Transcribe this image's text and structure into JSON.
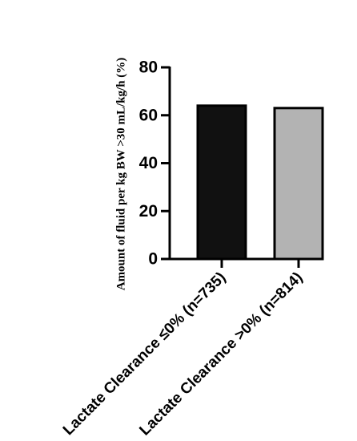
{
  "chart_data": {
    "type": "bar",
    "categories": [
      "Lactate Clearance ≤0% (n=735)",
      "Lactate Clearance >0% (n=814)"
    ],
    "values": [
      64,
      63
    ],
    "bar_colors": [
      "#111111",
      "#b3b3b3"
    ],
    "xlabel": "",
    "ylabel": "Amount of fluid per kg BW >30 mL/kg/h (%)",
    "ylim": [
      0,
      80
    ],
    "yticks": [
      0,
      20,
      40,
      60,
      80
    ],
    "ytick_labels": [
      "0",
      "20",
      "40",
      "60",
      "80"
    ],
    "grid": false,
    "legend": "none"
  }
}
